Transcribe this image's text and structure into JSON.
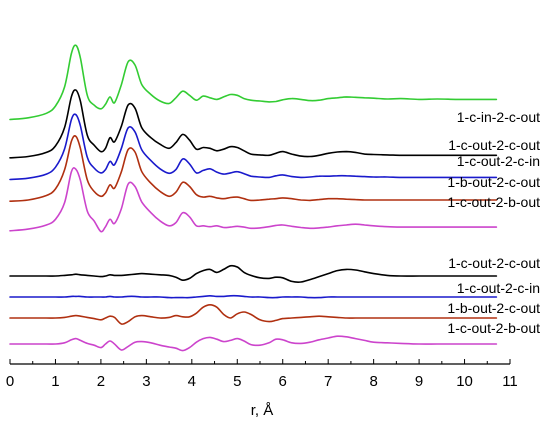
{
  "chart_data": {
    "type": "line",
    "xlabel": "r, Å",
    "xlim": [
      0,
      11
    ],
    "xticks": [
      0,
      1,
      2,
      3,
      4,
      5,
      6,
      7,
      8,
      9,
      10,
      11
    ],
    "grid": false,
    "y_axis_shown": false,
    "r": [
      0.0,
      0.4,
      0.8,
      1.0,
      1.2,
      1.35,
      1.45,
      1.55,
      1.7,
      1.85,
      2.0,
      2.1,
      2.2,
      2.3,
      2.45,
      2.6,
      2.75,
      2.9,
      3.1,
      3.3,
      3.5,
      3.65,
      3.8,
      3.95,
      4.1,
      4.25,
      4.4,
      4.55,
      4.7,
      4.85,
      5.0,
      5.15,
      5.3,
      5.5,
      5.7,
      5.85,
      6.0,
      6.2,
      6.4,
      6.6,
      6.8,
      7.0,
      7.2,
      7.4,
      7.6,
      7.8,
      8.0,
      8.3,
      8.6,
      9.0,
      9.4,
      9.8,
      10.2,
      10.7
    ],
    "upper_panel": {
      "series": [
        {
          "name": "1-c-in-2-c-out",
          "color": "#33cc33",
          "values": [
            0.55,
            0.75,
            1.3,
            2.2,
            4.5,
            8.6,
            9.6,
            8.0,
            3.5,
            2.3,
            1.85,
            2.4,
            3.3,
            2.6,
            4.8,
            7.6,
            7.2,
            4.8,
            3.6,
            2.8,
            2.5,
            3.2,
            4.0,
            3.5,
            2.9,
            3.4,
            3.2,
            3.0,
            3.3,
            3.6,
            3.5,
            3.1,
            2.9,
            2.8,
            2.7,
            2.75,
            2.95,
            3.1,
            3.0,
            2.85,
            2.9,
            3.1,
            3.2,
            3.3,
            3.25,
            3.2,
            3.15,
            3.05,
            3.1,
            3.0,
            3.05,
            3.0,
            3.0,
            3.0
          ]
        },
        {
          "name": "1-c-out-2-c-out",
          "color": "#000000",
          "values": [
            0.15,
            0.3,
            0.8,
            1.6,
            3.8,
            7.6,
            8.4,
            7.0,
            2.9,
            1.7,
            0.9,
            1.3,
            2.6,
            2.1,
            4.0,
            6.6,
            6.2,
            3.8,
            2.6,
            1.8,
            1.3,
            2.0,
            3.0,
            2.3,
            1.2,
            1.4,
            1.3,
            1.0,
            1.2,
            1.5,
            1.4,
            1.0,
            0.6,
            0.5,
            0.45,
            0.7,
            0.9,
            0.6,
            0.35,
            0.3,
            0.45,
            0.7,
            0.85,
            0.9,
            0.8,
            0.6,
            0.55,
            0.5,
            0.45,
            0.45,
            0.45,
            0.45,
            0.45,
            0.45
          ]
        },
        {
          "name": "1-c-out-2-c-in",
          "color": "#1a1acc",
          "values": [
            -0.3,
            -0.15,
            0.35,
            1.2,
            3.4,
            7.0,
            7.6,
            6.2,
            2.4,
            1.1,
            0.5,
            0.9,
            1.9,
            1.5,
            3.5,
            6.0,
            5.5,
            3.3,
            2.0,
            1.0,
            0.45,
            0.9,
            2.2,
            1.6,
            0.5,
            0.8,
            1.0,
            0.6,
            0.35,
            0.5,
            0.65,
            0.4,
            0.1,
            0.0,
            -0.05,
            0.15,
            0.25,
            0.05,
            -0.05,
            0.0,
            0.1,
            0.1,
            0.15,
            0.15,
            0.1,
            0.05,
            0.0,
            0.0,
            -0.05,
            -0.05,
            -0.05,
            -0.05,
            -0.05,
            -0.05
          ]
        },
        {
          "name": "1-b-out-2-c-out",
          "color": "#b03010",
          "values": [
            -1.0,
            -0.85,
            -0.3,
            0.5,
            2.8,
            6.3,
            6.9,
            5.4,
            1.6,
            0.2,
            -0.4,
            0.0,
            1.0,
            0.6,
            2.6,
            5.3,
            5.0,
            2.6,
            1.2,
            0.2,
            -0.4,
            0.1,
            1.3,
            0.8,
            -0.2,
            -0.5,
            -0.4,
            -0.6,
            -0.7,
            -0.55,
            -0.5,
            -0.7,
            -0.9,
            -0.85,
            -0.75,
            -0.7,
            -0.6,
            -0.7,
            -0.85,
            -0.9,
            -0.8,
            -0.7,
            -0.7,
            -0.75,
            -0.8,
            -0.85,
            -0.85,
            -0.85,
            -0.85,
            -0.85,
            -0.85,
            -0.85,
            -0.85,
            -0.85
          ]
        },
        {
          "name": "1-c-out-2-b-out",
          "color": "#cc44cc",
          "values": [
            -1.8,
            -1.6,
            -1.1,
            -0.4,
            1.6,
            5.4,
            5.7,
            4.3,
            0.6,
            -0.6,
            -1.9,
            -1.3,
            -0.4,
            -0.9,
            0.9,
            3.9,
            3.6,
            1.7,
            0.4,
            -0.6,
            -1.2,
            -0.8,
            0.4,
            -0.1,
            -1.2,
            -1.2,
            -1.3,
            -1.2,
            -1.4,
            -1.35,
            -1.25,
            -1.35,
            -1.5,
            -1.45,
            -1.3,
            -1.15,
            -1.1,
            -1.25,
            -1.4,
            -1.5,
            -1.45,
            -1.35,
            -1.2,
            -1.1,
            -1.0,
            -1.1,
            -1.2,
            -1.3,
            -1.35,
            -1.35,
            -1.35,
            -1.35,
            -1.35,
            -1.35
          ]
        }
      ]
    },
    "lower_panel": {
      "series": [
        {
          "name": "1-c-out-2-c-out",
          "color": "#000000",
          "values": [
            0.0,
            0.0,
            0.0,
            0.0,
            0.05,
            0.1,
            0.15,
            0.1,
            0.05,
            0.0,
            -0.05,
            0.0,
            0.1,
            0.05,
            0.05,
            0.1,
            0.15,
            0.2,
            0.15,
            0.1,
            0.05,
            -0.1,
            -0.35,
            -0.2,
            0.2,
            0.45,
            0.55,
            0.3,
            0.55,
            0.85,
            0.75,
            0.3,
            0.05,
            -0.15,
            -0.2,
            -0.1,
            -0.15,
            -0.45,
            -0.5,
            -0.3,
            -0.05,
            0.2,
            0.45,
            0.55,
            0.5,
            0.35,
            0.2,
            0.05,
            0.0,
            0.0,
            0.0,
            0.0,
            0.0,
            0.0
          ]
        },
        {
          "name": "1-c-out-2-c-in",
          "color": "#1a1acc",
          "values": [
            0.0,
            0.0,
            0.0,
            0.0,
            0.0,
            0.05,
            0.05,
            0.05,
            0.0,
            0.0,
            0.0,
            0.0,
            0.05,
            0.0,
            0.0,
            0.05,
            0.05,
            0.0,
            0.0,
            0.0,
            -0.05,
            -0.05,
            -0.05,
            -0.05,
            0.0,
            0.05,
            0.1,
            0.05,
            0.05,
            0.1,
            0.1,
            0.05,
            0.0,
            0.0,
            -0.05,
            -0.05,
            0.0,
            0.0,
            0.0,
            -0.05,
            -0.05,
            0.0,
            0.0,
            0.0,
            0.0,
            0.0,
            0.0,
            0.0,
            0.0,
            0.0,
            0.0,
            0.0,
            0.0,
            0.0
          ]
        },
        {
          "name": "1-b-out-2-c-out",
          "color": "#b03010",
          "values": [
            0.0,
            0.0,
            0.0,
            0.0,
            0.05,
            0.15,
            0.2,
            0.15,
            0.05,
            -0.05,
            -0.15,
            0.0,
            0.15,
            0.05,
            -0.5,
            -0.3,
            0.1,
            0.2,
            0.1,
            0.0,
            0.05,
            0.2,
            0.1,
            0.1,
            0.4,
            0.9,
            1.1,
            0.9,
            0.3,
            0.0,
            0.35,
            0.5,
            0.3,
            -0.15,
            -0.3,
            -0.2,
            -0.05,
            0.0,
            0.05,
            0.1,
            0.15,
            0.1,
            0.05,
            0.0,
            0.0,
            0.0,
            0.0,
            0.0,
            0.0,
            0.0,
            0.0,
            0.0,
            0.0,
            0.0
          ]
        },
        {
          "name": "1-c-out-2-b-out",
          "color": "#cc44cc",
          "values": [
            0.0,
            0.0,
            0.0,
            0.0,
            0.1,
            0.35,
            0.45,
            0.3,
            0.05,
            -0.1,
            -0.3,
            0.0,
            0.25,
            0.0,
            -0.5,
            -0.2,
            0.15,
            0.2,
            0.1,
            -0.1,
            -0.25,
            -0.35,
            -0.55,
            -0.3,
            0.15,
            0.45,
            0.55,
            0.4,
            0.2,
            0.3,
            0.45,
            0.25,
            -0.05,
            -0.1,
            0.1,
            0.4,
            0.35,
            0.1,
            0.05,
            0.15,
            0.35,
            0.5,
            0.65,
            0.6,
            0.45,
            0.3,
            0.15,
            0.1,
            0.05,
            0.0,
            0.0,
            0.0,
            0.0,
            0.0
          ]
        }
      ]
    }
  }
}
